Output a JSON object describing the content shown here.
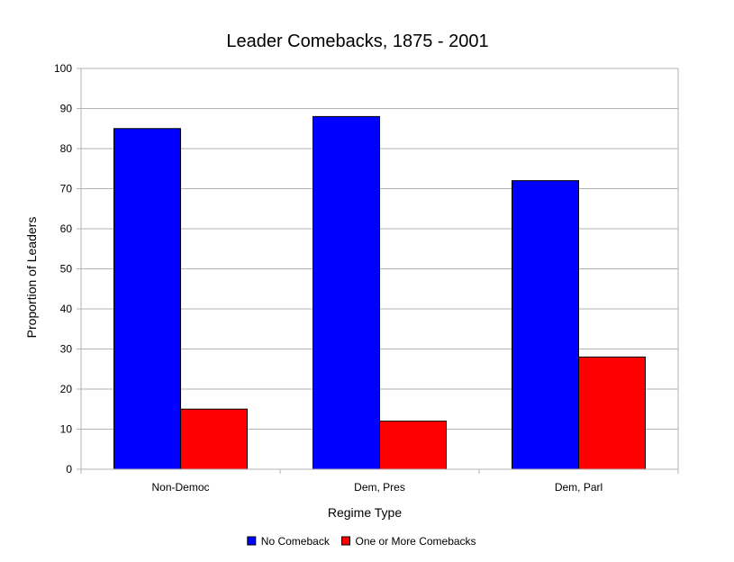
{
  "chart_data": {
    "type": "bar",
    "title": "Leader Comebacks, 1875 - 2001",
    "xlabel": "Regime Type",
    "ylabel": "Proportion of Leaders",
    "categories": [
      "Non-Democ",
      "Dem, Pres",
      "Dem, Parl"
    ],
    "series": [
      {
        "name": "No Comeback",
        "color": "#0000ff",
        "values": [
          85,
          88,
          72
        ]
      },
      {
        "name": "One or More Comebacks",
        "color": "#ff0000",
        "values": [
          15,
          12,
          28
        ]
      }
    ],
    "ylim": [
      0,
      100
    ],
    "yticks": [
      "0",
      "10",
      "20",
      "30",
      "40",
      "50",
      "60",
      "70",
      "80",
      "90",
      "100"
    ],
    "grid": true,
    "legend_position": "bottom"
  }
}
